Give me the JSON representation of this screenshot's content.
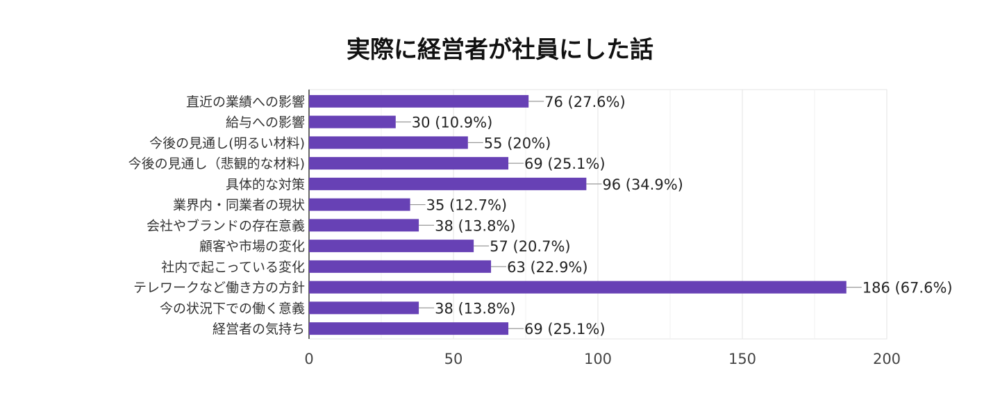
{
  "chart_data": {
    "type": "bar",
    "orientation": "horizontal",
    "title": "実際に経営者が社員にした話",
    "categories": [
      "直近の業績への影響",
      "給与への影響",
      "今後の見通し(明るい材料)",
      "今後の見通し（悲観的な材料)",
      "具体的な対策",
      "業界内・同業者の現状",
      "会社やブランドの存在意義",
      "顧客や市場の変化",
      "社内で起こっている変化",
      "テレワークなど働き方の方針",
      "今の状況下での働く意義",
      "経営者の気持ち"
    ],
    "values": [
      76,
      30,
      55,
      69,
      96,
      35,
      38,
      57,
      63,
      186,
      38,
      69
    ],
    "data_labels": [
      "76 (27.6%)",
      "30 (10.9%)",
      "55 (20%)",
      "69 (25.1%)",
      "96 (34.9%)",
      "35 (12.7%)",
      "38 (13.8%)",
      "57 (20.7%)",
      "63 (22.9%)",
      "186 (67.6%)",
      "38 (13.8%)",
      "69 (25.1%)"
    ],
    "x_ticks": [
      "0",
      "50",
      "100",
      "150",
      "200"
    ],
    "xlim": [
      0,
      200
    ],
    "grid": true,
    "legend": "none",
    "xlabel": "",
    "ylabel": "",
    "bar_color": "#6741b5"
  }
}
